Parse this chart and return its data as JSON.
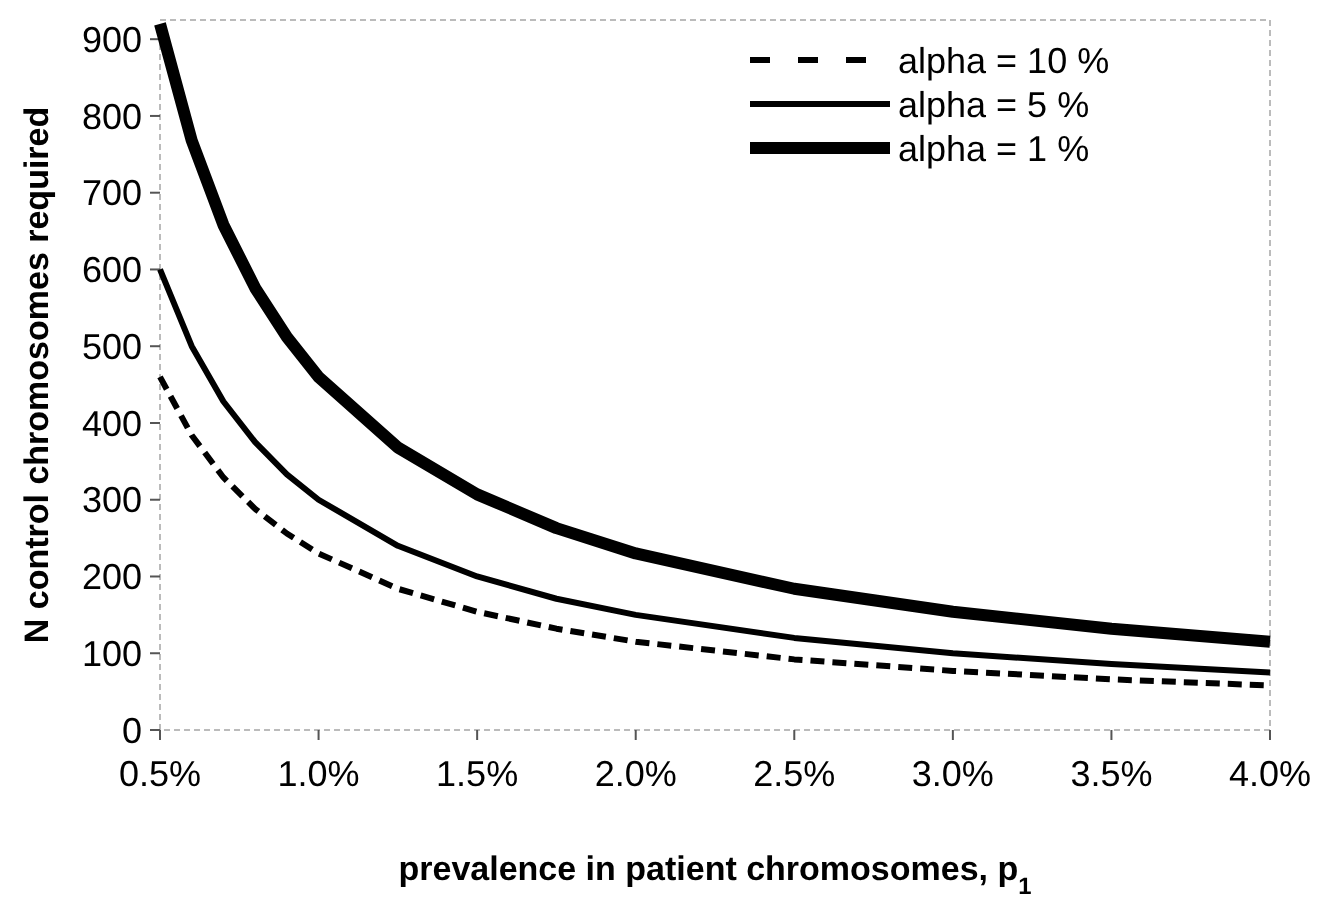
{
  "chart_data": {
    "type": "line",
    "xlabel": "prevalence in patient chromosomes, p$_{1}$",
    "ylabel": "N control chromosomes required",
    "x": [
      0.5,
      0.6,
      0.7,
      0.8,
      0.9,
      1.0,
      1.25,
      1.5,
      1.75,
      2.0,
      2.5,
      3.0,
      3.5,
      4.0
    ],
    "series": [
      {
        "name": "alpha = 10 %",
        "color": "#000000",
        "line_style": "dashed",
        "values": [
          460,
          384,
          329,
          288,
          256,
          230,
          184,
          154,
          132,
          115,
          92,
          77,
          66,
          58
        ]
      },
      {
        "name": "alpha = 5 %",
        "color": "#000000",
        "line_style": "solid",
        "values": [
          600,
          500,
          428,
          375,
          333,
          300,
          240,
          200,
          171,
          150,
          120,
          100,
          86,
          75
        ]
      },
      {
        "name": "alpha = 1 %",
        "color": "#000000",
        "line_style": "solid",
        "values": [
          920,
          768,
          658,
          576,
          512,
          460,
          368,
          307,
          263,
          230,
          184,
          154,
          132,
          115
        ]
      }
    ],
    "xlim": [
      0.5,
      4.0
    ],
    "xticks": [
      {
        "value": 0.5,
        "label": "0.5%"
      },
      {
        "value": 1.0,
        "label": "1.0%"
      },
      {
        "value": 1.5,
        "label": "1.5%"
      },
      {
        "value": 2.0,
        "label": "2.0%"
      },
      {
        "value": 2.5,
        "label": "2.5%"
      },
      {
        "value": 3.0,
        "label": "3.0%"
      },
      {
        "value": 3.5,
        "label": "3.5%"
      },
      {
        "value": 4.0,
        "label": "4.0%"
      }
    ],
    "ylim": [
      0,
      925
    ],
    "yticks": [
      0,
      100,
      200,
      300,
      400,
      500,
      600,
      700,
      800,
      900
    ],
    "legend": "top right",
    "grid": false,
    "marker": "none"
  }
}
